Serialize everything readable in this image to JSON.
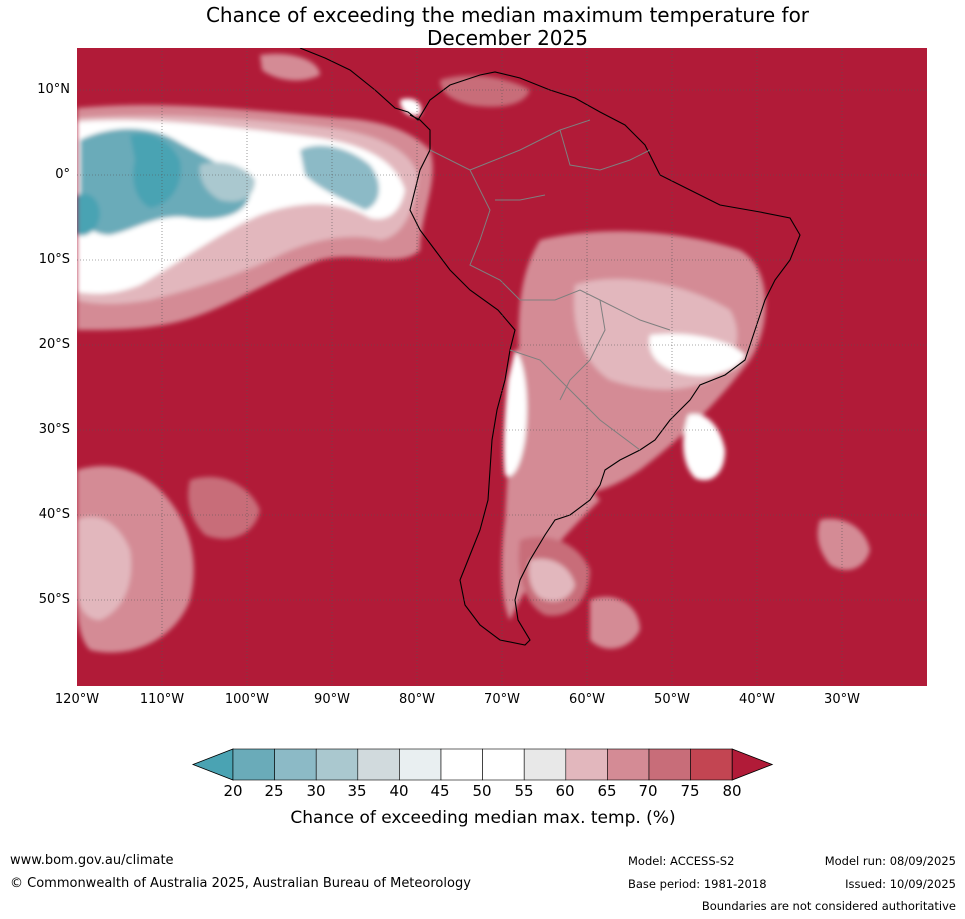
{
  "title_line1": "Chance of exceeding the median maximum temperature for",
  "title_line2": "December 2025",
  "lat_labels": [
    "10°N",
    "0°",
    "10°S",
    "20°S",
    "30°S",
    "40°S",
    "50°S"
  ],
  "lon_labels": [
    "120°W",
    "110°W",
    "100°W",
    "90°W",
    "80°W",
    "70°W",
    "60°W",
    "50°W",
    "40°W",
    "30°W"
  ],
  "colorbar": {
    "ticks": [
      "20",
      "25",
      "30",
      "35",
      "40",
      "45",
      "50",
      "55",
      "60",
      "65",
      "70",
      "75",
      "80"
    ],
    "colors": [
      "#4aa3b3",
      "#6aabb9",
      "#8cbac6",
      "#aac8cf",
      "#d1dadd",
      "#e9eff1",
      "#ffffff",
      "#ffffff",
      "#e8e8e8",
      "#e2b7bd",
      "#d48b95",
      "#c86d79",
      "#c34552",
      "#b11b38"
    ],
    "title": "Chance of exceeding median max. temp. (%)"
  },
  "colors": {
    "high": "#b11b38",
    "ocean_border": "#7f7f7f"
  },
  "footer": {
    "website": "www.bom.gov.au/climate",
    "copyright": "© Commonwealth of Australia 2025, Australian Bureau of Meteorology",
    "model": "Model: ACCESS-S2",
    "base_period": "Base period: 1981-2018",
    "model_run": "Model run: 08/09/2025",
    "issued": "Issued: 10/09/2025",
    "disclaimer": "Boundaries are not considered authoritative"
  }
}
